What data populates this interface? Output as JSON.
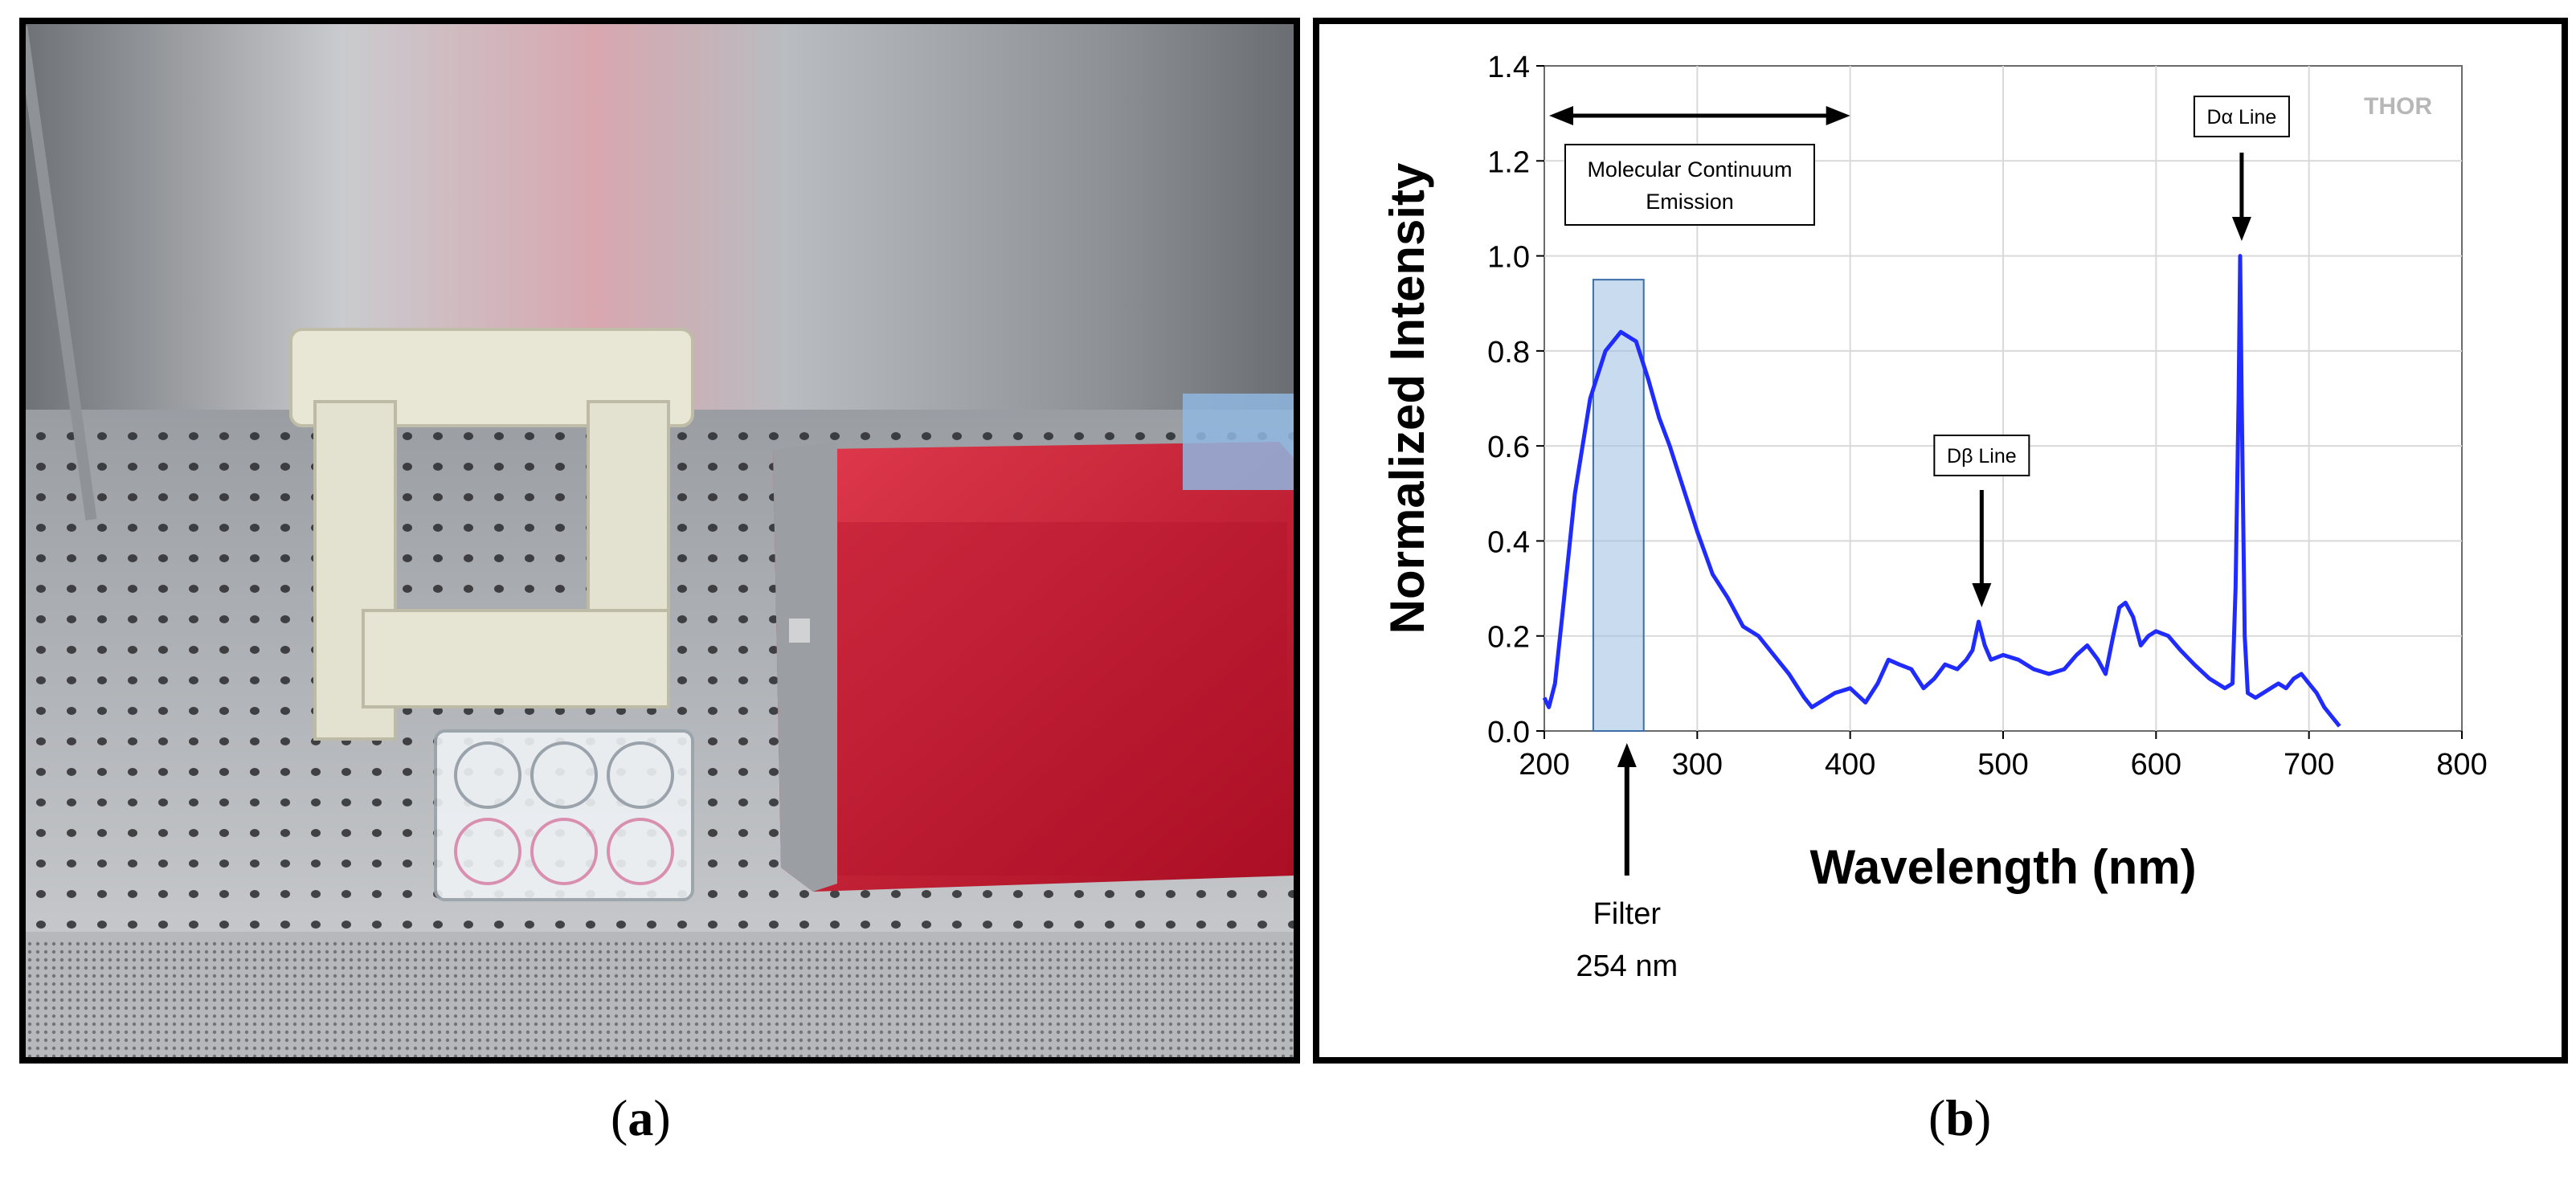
{
  "panel_a": {
    "caption_open": "(",
    "caption_letter": "a",
    "caption_close": ")"
  },
  "panel_b": {
    "caption_open": "(",
    "caption_letter": "b",
    "caption_close": ")",
    "watermark": "THOR"
  },
  "colors": {
    "line": "#1f2bff",
    "filter_band": "#9dbde0",
    "filter_band_edge": "#3d6ea8",
    "grid": "#d9d9d9",
    "panel_a_cabinet_red": "#c8102e",
    "panel_a_steel": "#b8bcc0"
  },
  "chart_data": {
    "type": "line",
    "title": "",
    "xlabel": "Wavelength (nm)",
    "ylabel": "Normalized Intensity",
    "xlim": [
      200,
      800
    ],
    "ylim": [
      0.0,
      1.4
    ],
    "x_ticks": [
      "200",
      "300",
      "400",
      "500",
      "600",
      "700",
      "800"
    ],
    "y_ticks": [
      "0.0",
      "0.2",
      "0.4",
      "0.6",
      "0.8",
      "1.0",
      "1.2",
      "1.4"
    ],
    "grid": true,
    "series": [
      {
        "x": [
          200,
          203,
          207,
          212,
          220,
          230,
          240,
          250,
          260,
          268,
          275,
          282,
          290,
          300,
          310,
          320,
          330,
          340,
          350,
          360,
          370,
          375,
          380,
          390,
          400,
          410,
          418,
          425,
          432,
          440,
          448,
          455,
          462,
          470,
          476,
          480,
          484,
          488,
          492,
          500,
          510,
          520,
          530,
          540,
          548,
          555,
          562,
          567,
          572,
          576,
          580,
          585,
          590,
          595,
          600,
          608,
          616,
          625,
          635,
          645,
          650,
          652,
          654,
          655,
          656,
          658,
          660,
          665,
          670,
          675,
          680,
          685,
          690,
          695,
          700,
          705,
          710,
          715,
          720
        ],
        "y": [
          0.07,
          0.05,
          0.1,
          0.25,
          0.5,
          0.7,
          0.8,
          0.84,
          0.82,
          0.74,
          0.66,
          0.6,
          0.52,
          0.42,
          0.33,
          0.28,
          0.22,
          0.2,
          0.16,
          0.12,
          0.07,
          0.05,
          0.06,
          0.08,
          0.09,
          0.06,
          0.1,
          0.15,
          0.14,
          0.13,
          0.09,
          0.11,
          0.14,
          0.13,
          0.15,
          0.17,
          0.23,
          0.18,
          0.15,
          0.16,
          0.15,
          0.13,
          0.12,
          0.13,
          0.16,
          0.18,
          0.15,
          0.12,
          0.2,
          0.26,
          0.27,
          0.24,
          0.18,
          0.2,
          0.21,
          0.2,
          0.17,
          0.14,
          0.11,
          0.09,
          0.1,
          0.3,
          0.7,
          1.0,
          0.7,
          0.2,
          0.08,
          0.07,
          0.08,
          0.09,
          0.1,
          0.09,
          0.11,
          0.12,
          0.1,
          0.08,
          0.05,
          0.03,
          0.01
        ]
      }
    ],
    "annotations": {
      "molecular_box_line1": "Molecular Continuum",
      "molecular_box_line2": "Emission",
      "molecular_range": [
        200,
        400
      ],
      "filter_label_line1": "Filter",
      "filter_label_line2": "254 nm",
      "filter_band": [
        232,
        265
      ],
      "filter_band_top": 0.95,
      "d_beta_label": "Dβ Line",
      "d_beta_x": 486,
      "d_alpha_label": "Dα Line",
      "d_alpha_x": 656
    }
  }
}
